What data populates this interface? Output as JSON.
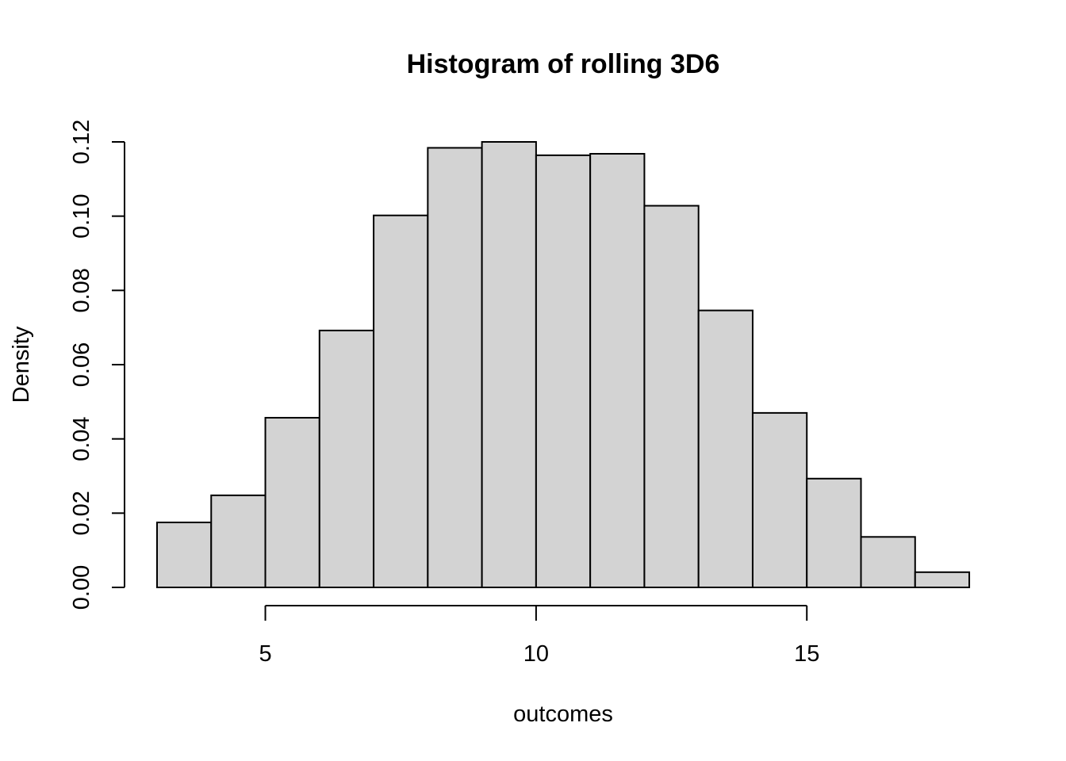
{
  "chart_data": {
    "type": "bar",
    "title": "Histogram of rolling 3D6",
    "xlabel": "outcomes",
    "ylabel": "Density",
    "bin_edges": [
      3,
      4,
      5,
      6,
      7,
      8,
      9,
      10,
      11,
      12,
      13,
      14,
      15,
      16,
      17,
      18
    ],
    "values": [
      0.0175,
      0.0248,
      0.0457,
      0.0692,
      0.1002,
      0.1184,
      0.12,
      0.1164,
      0.1168,
      0.1028,
      0.0746,
      0.047,
      0.0293,
      0.0136,
      0.0041
    ],
    "xlim": [
      3,
      18
    ],
    "ylim": [
      0,
      0.12
    ],
    "x_ticks": [
      5,
      10,
      15
    ],
    "x_tick_labels": [
      "5",
      "10",
      "15"
    ],
    "y_ticks": [
      0,
      0.02,
      0.04,
      0.06,
      0.08,
      0.1,
      0.12
    ],
    "y_tick_labels": [
      "0.00",
      "0.02",
      "0.04",
      "0.06",
      "0.08",
      "0.10",
      "0.12"
    ],
    "bar_fill": "#d3d3d3",
    "bar_stroke": "#000000",
    "grid": false,
    "legend": "none"
  }
}
